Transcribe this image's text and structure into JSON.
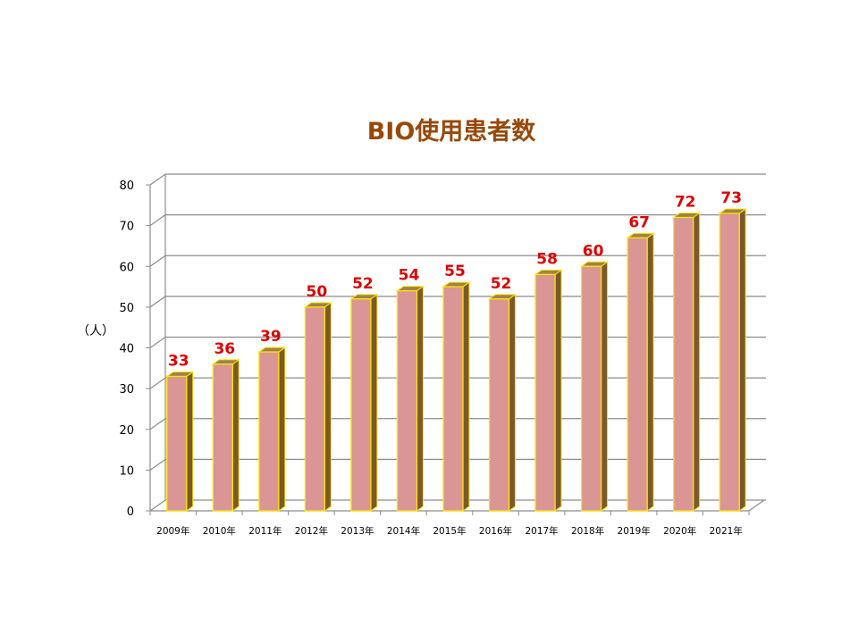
{
  "chart_data": {
    "type": "bar",
    "title": "BIO使用患者数",
    "ylabel": "（人）",
    "xlabel": "",
    "categories": [
      "2009年",
      "2010年",
      "2011年",
      "2012年",
      "2013年",
      "2014年",
      "2015年",
      "2016年",
      "2017年",
      "2018年",
      "2019年",
      "2020年",
      "2021年"
    ],
    "values": [
      33,
      36,
      39,
      50,
      52,
      54,
      55,
      52,
      58,
      60,
      67,
      72,
      73
    ],
    "ylim": [
      0,
      80
    ],
    "yticks": [
      0,
      10,
      20,
      30,
      40,
      50,
      60,
      70,
      80
    ],
    "grid": true,
    "legend": "none",
    "data_labels": true,
    "colors": {
      "bar_front": "#D99694",
      "bar_top": "#A0824A",
      "bar_side": "#7A5A2A",
      "bar_outline": "#FFE500",
      "data_label": "#E00000",
      "title": "#984807",
      "grid": "#8C8C8C"
    }
  }
}
